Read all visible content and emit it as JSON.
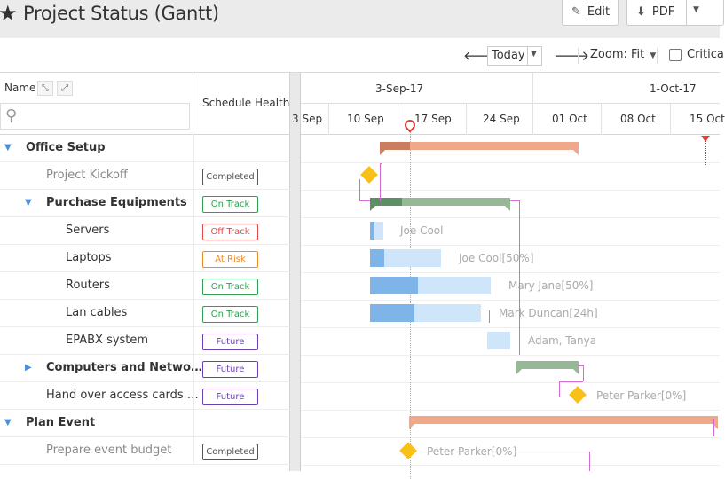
{
  "header": {
    "title": "Project Status (Gantt)",
    "edit_label": "Edit",
    "pdf_label": "PDF"
  },
  "toolbar": {
    "today_label": "Today",
    "zoom_label": "Zoom: Fit",
    "critical_label": "Critica"
  },
  "grid": {
    "name_header": "Name",
    "health_header": "Schedule Health",
    "search_placeholder": "",
    "rows": [
      {
        "name": "Office Setup",
        "level": 0,
        "expand": "expanded",
        "type": "summary",
        "health": ""
      },
      {
        "name": "Project Kickoff",
        "level": 1,
        "expand": "none",
        "type": "task-done",
        "health": "Completed"
      },
      {
        "name": "Purchase Equipments",
        "level": 1,
        "expand": "expanded",
        "type": "summary",
        "health": "On Track"
      },
      {
        "name": "Servers",
        "level": 2,
        "expand": "none",
        "type": "task",
        "health": "Off Track"
      },
      {
        "name": "Laptops",
        "level": 2,
        "expand": "none",
        "type": "task",
        "health": "At Risk"
      },
      {
        "name": "Routers",
        "level": 2,
        "expand": "none",
        "type": "task",
        "health": "On Track"
      },
      {
        "name": "Lan cables",
        "level": 2,
        "expand": "none",
        "type": "task",
        "health": "On Track"
      },
      {
        "name": "EPABX system",
        "level": 2,
        "expand": "none",
        "type": "task",
        "health": "Future"
      },
      {
        "name": "Computers and Netwo…",
        "level": 1,
        "expand": "collapsed",
        "type": "summary",
        "health": "Future"
      },
      {
        "name": "Hand over access cards …",
        "level": 1,
        "expand": "none",
        "type": "task",
        "health": "Future"
      },
      {
        "name": "Plan Event",
        "level": 0,
        "expand": "expanded",
        "type": "summary",
        "health": ""
      },
      {
        "name": "Prepare event budget",
        "level": 1,
        "expand": "none",
        "type": "task-done",
        "health": "Completed"
      }
    ]
  },
  "health_colors": {
    "Completed": "#555555",
    "On Track": "#2e9e4f",
    "Off Track": "#e04848",
    "At Risk": "#f08a24",
    "Future": "#6a3fb0"
  },
  "timeline": {
    "months": [
      "3-Sep-17",
      "1-Oct-17"
    ],
    "weeks": [
      "3 Sep",
      "10 Sep",
      "17 Sep",
      "24 Sep",
      "01 Oct",
      "08 Oct",
      "15 Oct"
    ],
    "resources": [
      "Joe Cool",
      "Joe Cool[50%]",
      "Mary Jane[50%]",
      "Mark Duncan[24h]",
      "Adam, Tanya",
      "Peter Parker[0%]",
      "Peter Parker[0%]"
    ]
  },
  "colors": {
    "summary_orange": "#f0a88a",
    "summary_orange_done": "#c97e5f",
    "summary_green": "#97b896",
    "summary_green_done": "#5d8f66",
    "task_light": "#cfe6fa",
    "task_done": "#7fb4e8",
    "milestone": "#f9c117",
    "dependency": "#d36ad6"
  }
}
